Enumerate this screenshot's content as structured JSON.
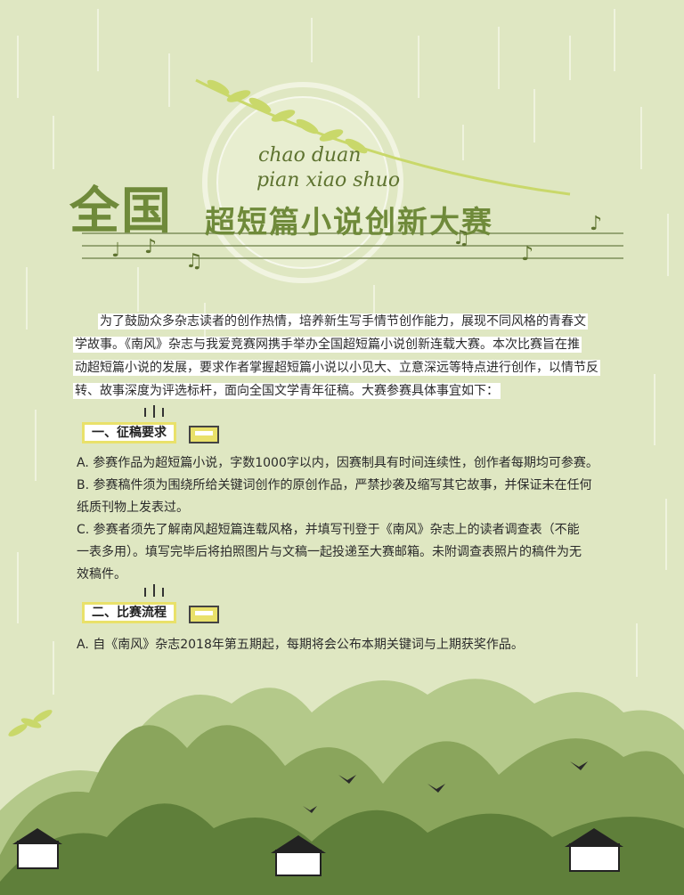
{
  "header": {
    "title_big": "全国",
    "title_sub": "超短篇小说创新大赛",
    "pinyin_line1": "chao duan",
    "pinyin_line2": "pian xiao shuo"
  },
  "intro": {
    "lines": [
      "为了鼓励众多杂志读者的创作热情，培养新生写手情节创作能力，展现不同风格的青春文",
      "学故事。《南风》杂志与我爱竞赛网携手举办全国超短篇小说创新连载大赛。本次比赛旨在推",
      "动超短篇小说的发展，要求作者掌握超短篇小说以小见大、立意深远等特点进行创作，以情节反",
      "转、故事深度为评选标杆，面向全国文学青年征稿。大赛参赛具体事宜如下："
    ]
  },
  "section1": {
    "label": "一、征稿要求",
    "items": [
      "A. 参赛作品为超短篇小说，字数1000字以内，因赛制具有时间连续性，创作者每期均可参赛。",
      "B. 参赛稿件须为围绕所给关键词创作的原创作品，严禁抄袭及缩写其它故事，并保证未在任何",
      "纸质刊物上发表过。",
      "C. 参赛者须先了解南风超短篇连载风格，并填写刊登于《南风》杂志上的读者调查表（不能",
      "一表多用）。填写完毕后将拍照图片与文稿一起投递至大赛邮箱。未附调查表照片的稿件为无",
      "效稿件。"
    ]
  },
  "section2": {
    "label": "二、比赛流程",
    "items": [
      "A. 自《南风》杂志2018年第五期起，每期将会公布本期关键词与上期获奖作品。"
    ]
  },
  "colors": {
    "background": "#dfe7c2",
    "title_green": "#6f8a3a",
    "tag_yellow": "#e9e16a",
    "mountain_dark": "#5f7f3a",
    "mountain_mid": "#8aa55c",
    "mountain_light": "#b4c98a"
  },
  "icons": [
    "music-note-icon",
    "wheat-sprig-icon",
    "swallow-bird-icon",
    "house-icon"
  ]
}
